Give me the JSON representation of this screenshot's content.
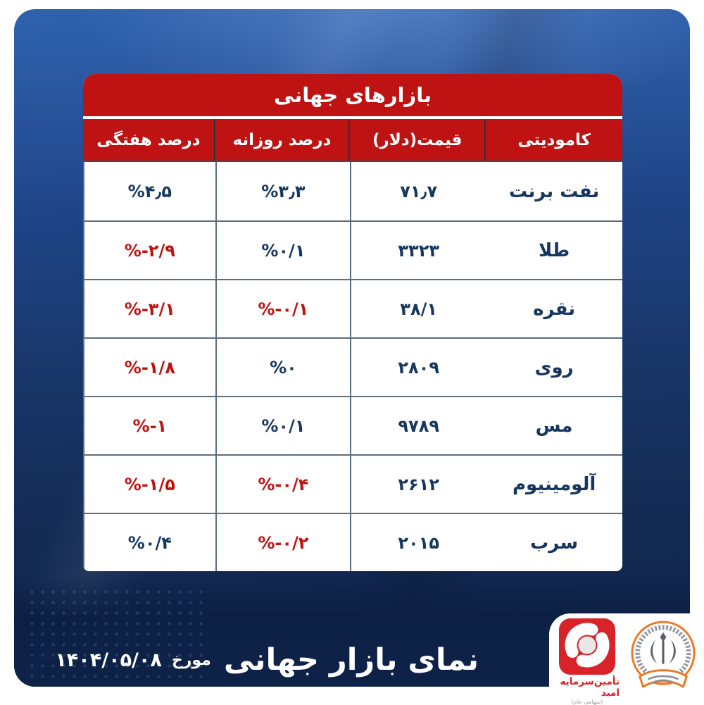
{
  "theme": {
    "header_red": "#bf1313",
    "negative_red": "#c11212",
    "positive_navy": "#17375f",
    "canvas_blue_top": "#2e62ad",
    "canvas_blue_bottom": "#0f2248",
    "banner_navy": "#0e2248",
    "omid_red": "#d8232a",
    "sepah_orange": "#ee7722"
  },
  "table": {
    "title": "بازارهای جهانی",
    "columns": [
      "کامودیتی",
      "قیمت(دلار)",
      "درصد روزانه",
      "درصد هفتگی"
    ],
    "rows": [
      {
        "name": "نفت برنت",
        "price": "۷۱٫۷",
        "daily": {
          "text": "%۳٫۳",
          "negative": false
        },
        "weekly": {
          "text": "%۴٫۵",
          "negative": false
        }
      },
      {
        "name": "طلا",
        "price": "۳۳۲۳",
        "daily": {
          "text": "%۰/۱",
          "negative": false
        },
        "weekly": {
          "text": "%-۲/۹",
          "negative": true
        }
      },
      {
        "name": "نقره",
        "price": "۳۸/۱",
        "daily": {
          "text": "%-۰/۱",
          "negative": true
        },
        "weekly": {
          "text": "%-۳/۱",
          "negative": true
        }
      },
      {
        "name": "روی",
        "price": "۲۸۰۹",
        "daily": {
          "text": "%۰",
          "negative": false
        },
        "weekly": {
          "text": "%-۱/۸",
          "negative": true
        }
      },
      {
        "name": "مس",
        "price": "۹۷۸۹",
        "daily": {
          "text": "%۰/۱",
          "negative": false
        },
        "weekly": {
          "text": "%-۱",
          "negative": true
        }
      },
      {
        "name": "آلومینیوم",
        "price": "۲۶۱۲",
        "daily": {
          "text": "%-۰/۴",
          "negative": true
        },
        "weekly": {
          "text": "%-۱/۵",
          "negative": true
        }
      },
      {
        "name": "سرب",
        "price": "۲۰۱۵",
        "daily": {
          "text": "%-۰/۲",
          "negative": true
        },
        "weekly": {
          "text": "%۰/۴",
          "negative": false
        }
      }
    ]
  },
  "footer": {
    "title": "نمای بازار جهانی",
    "dated_label": "مورخ",
    "date": "۱۴۰۴/۰۵/۰۸"
  },
  "logos": {
    "omid_caption": "تأمین‌سرمایه امید",
    "omid_subtitle": "(سهامی عام)"
  },
  "chart_data": {
    "type": "table",
    "title": "بازارهای جهانی",
    "columns": [
      "کامودیتی",
      "قیمت(دلار)",
      "درصد روزانه",
      "درصد هفتگی"
    ],
    "rows": [
      [
        "نفت برنت",
        "71.7",
        "3.3%",
        "4.5%"
      ],
      [
        "طلا",
        "3323",
        "0.1%",
        "-2.9%"
      ],
      [
        "نقره",
        "38.1",
        "-0.1%",
        "-3.1%"
      ],
      [
        "روی",
        "2809",
        "0%",
        "-1.8%"
      ],
      [
        "مس",
        "9789",
        "0.1%",
        "-1%"
      ],
      [
        "آلومینیوم",
        "2612",
        "-0.4%",
        "-1.5%"
      ],
      [
        "سرب",
        "2015",
        "-0.2%",
        "0.4%"
      ]
    ],
    "notes": "negative percentages rendered in red, others in navy; footer date 1404/05/08 (Persian calendar)"
  }
}
